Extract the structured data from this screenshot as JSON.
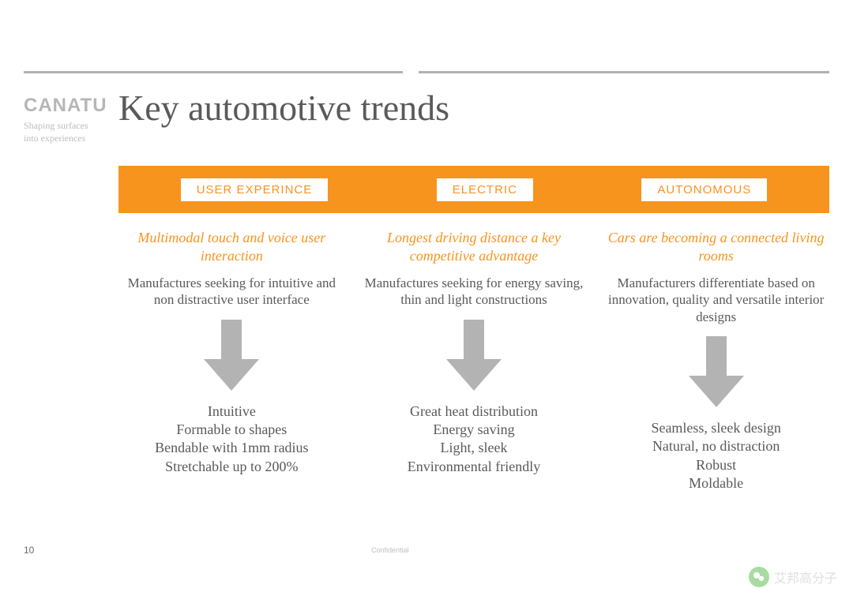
{
  "page": {
    "brand": "CANATU",
    "tagline": "Shaping surfaces into experiences",
    "title": "Key automotive trends",
    "page_number": "10",
    "confidential": "Confidential",
    "watermark": "艾邦高分子"
  },
  "colors": {
    "accent": "#f7941d",
    "text": "#5a5a5a",
    "muted": "#b6b6b6",
    "arrow": "#b3b3b3",
    "background": "#ffffff"
  },
  "tabs": [
    {
      "label": "USER EXPERINCE"
    },
    {
      "label": "ELECTRIC"
    },
    {
      "label": "AUTONOMOUS"
    }
  ],
  "columns": [
    {
      "heading": "Multimodal touch and voice user interaction",
      "sub": "Manufactures seeking for intuitive and non distractive user interface",
      "bullets": "Intuitive\nFormable to shapes\nBendable with 1mm radius\nStretchable up to 200%"
    },
    {
      "heading": "Longest driving distance a key competitive advantage",
      "sub": "Manufactures seeking for energy saving, thin and light constructions",
      "bullets": "Great heat distribution\nEnergy saving\nLight, sleek\nEnvironmental friendly"
    },
    {
      "heading": "Cars are becoming a connected living rooms",
      "sub": "Manufacturers differentiate based on innovation, quality and versatile interior designs",
      "bullets": "Seamless, sleek design\nNatural, no distraction\nRobust\nMoldable"
    }
  ],
  "arrow": {
    "fill": "#b3b3b3",
    "width": 70,
    "height": 90
  }
}
